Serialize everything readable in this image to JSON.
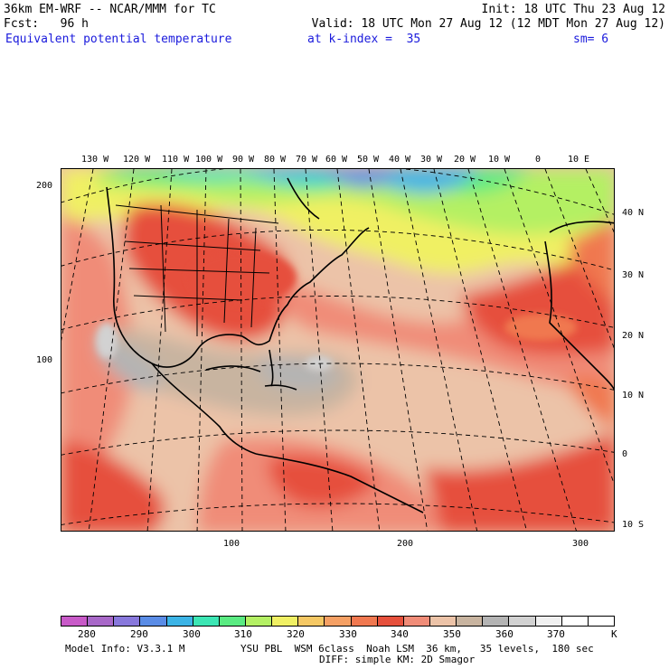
{
  "header": {
    "model_title": "36km EM-WRF -- NCAR/MMM for TC",
    "init": "Init: 18 UTC Thu 23 Aug 12",
    "fcst": "Fcst:   96 h",
    "valid": "Valid: 18 UTC Mon 27 Aug 12 (12 MDT Mon 27 Aug 12)",
    "field": "Equivalent potential temperature",
    "level": "at k-index =  35",
    "smooth": "sm= 6"
  },
  "map": {
    "lon_labels": [
      "130 W",
      "120 W",
      "110 W",
      "100 W",
      "90 W",
      "80 W",
      "70 W",
      "60 W",
      "50 W",
      "40 W",
      "30 W",
      "20 W",
      "10 W",
      "0",
      "10 E"
    ],
    "lat_labels": [
      "40 N",
      "30 N",
      "20 N",
      "10 N",
      "0",
      "10 S"
    ],
    "y_grid_labels": [
      "200",
      "100"
    ],
    "x_grid_labels": [
      "100",
      "200",
      "300"
    ]
  },
  "colorbar": {
    "colors": [
      "#c85ac8",
      "#a868c8",
      "#8878dc",
      "#5a8ce6",
      "#3cb4e6",
      "#3ce6b4",
      "#5aeb82",
      "#b4f064",
      "#f0f064",
      "#f5c864",
      "#f5a064",
      "#f07850",
      "#e6503c",
      "#f08c78",
      "#ecc3a8",
      "#c8b4a0",
      "#b4b4b4",
      "#d2d2d2",
      "#f0f0f0",
      "#ffffff",
      "#ffffff"
    ],
    "labels": [
      "280",
      "290",
      "300",
      "310",
      "320",
      "330",
      "340",
      "350",
      "360",
      "370",
      "K"
    ]
  },
  "footer": {
    "model_info": "Model Info: V3.3.1 M",
    "physics": "YSU PBL  WSM 6class  Noah LSM  36 km,   35 levels,  180 sec",
    "diffusion": "DIFF: simple KM: 2D Smagor"
  }
}
